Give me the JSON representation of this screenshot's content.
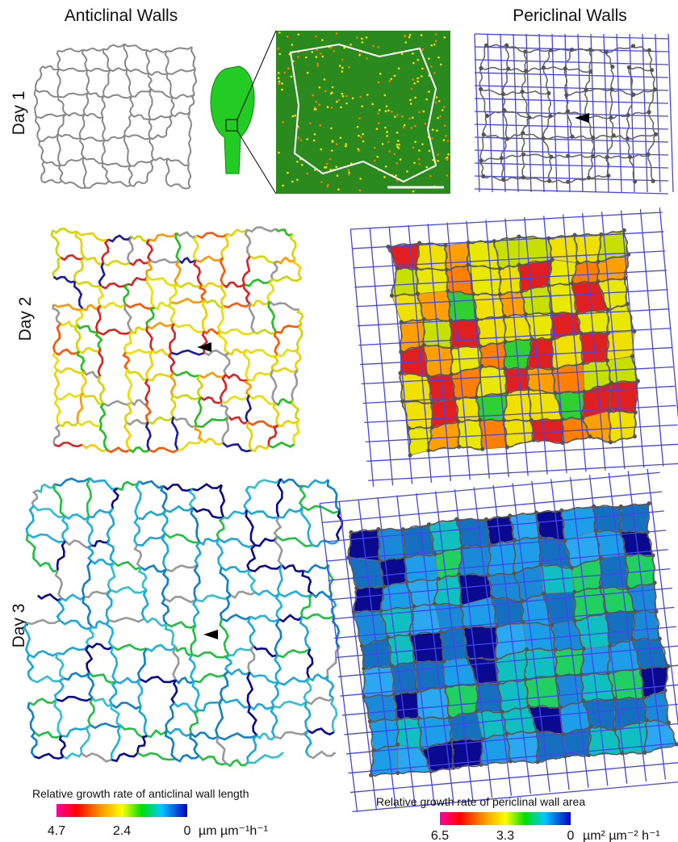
{
  "header": {
    "anticlinal": "Anticlinal Walls",
    "periclinal": "Periclinal Walls"
  },
  "rows": [
    "Day 1",
    "Day 2",
    "Day 3"
  ],
  "colorbars": [
    {
      "title": "Relative growth rate of anticlinal wall length",
      "ticks": [
        "4.7",
        "2.4",
        "0"
      ],
      "unit": "µm µm⁻¹h⁻¹"
    },
    {
      "title": "Relative growth rate of periclinal wall area",
      "ticks": [
        "6.5",
        "3.3",
        "0"
      ],
      "unit": "µm² µm⁻² h⁻¹"
    }
  ]
}
